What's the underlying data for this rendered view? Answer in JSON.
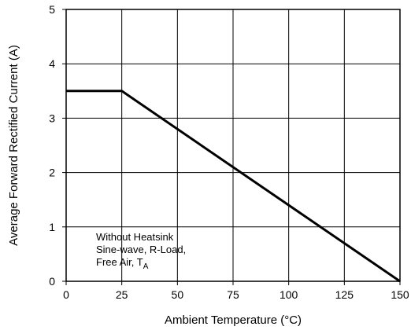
{
  "chart_data": {
    "type": "line",
    "title": "",
    "xlabel": "Ambient Temperature (°C)",
    "ylabel": "Average Forward Rectified Current (A)",
    "xlim": [
      0,
      150
    ],
    "ylim": [
      0,
      5
    ],
    "x_ticks": [
      0,
      25,
      50,
      75,
      100,
      125,
      150
    ],
    "y_ticks": [
      0,
      1,
      2,
      3,
      4,
      5
    ],
    "x_tick_labels": [
      "0",
      "25",
      "50",
      "75",
      "100",
      "125",
      "150"
    ],
    "y_tick_labels": [
      "0",
      "1",
      "2",
      "3",
      "4",
      "5"
    ],
    "grid": true,
    "series": [
      {
        "x": [
          0,
          25,
          150
        ],
        "y": [
          3.5,
          3.5,
          0
        ]
      }
    ],
    "annotation": {
      "line1": "Without Heatsink",
      "line2": "Sine-wave, R-Load,",
      "line3_main": "Free Air, T",
      "line3_sub": "A"
    },
    "colors": {
      "line": "#000000",
      "grid": "#000000",
      "background": "#ffffff"
    }
  }
}
